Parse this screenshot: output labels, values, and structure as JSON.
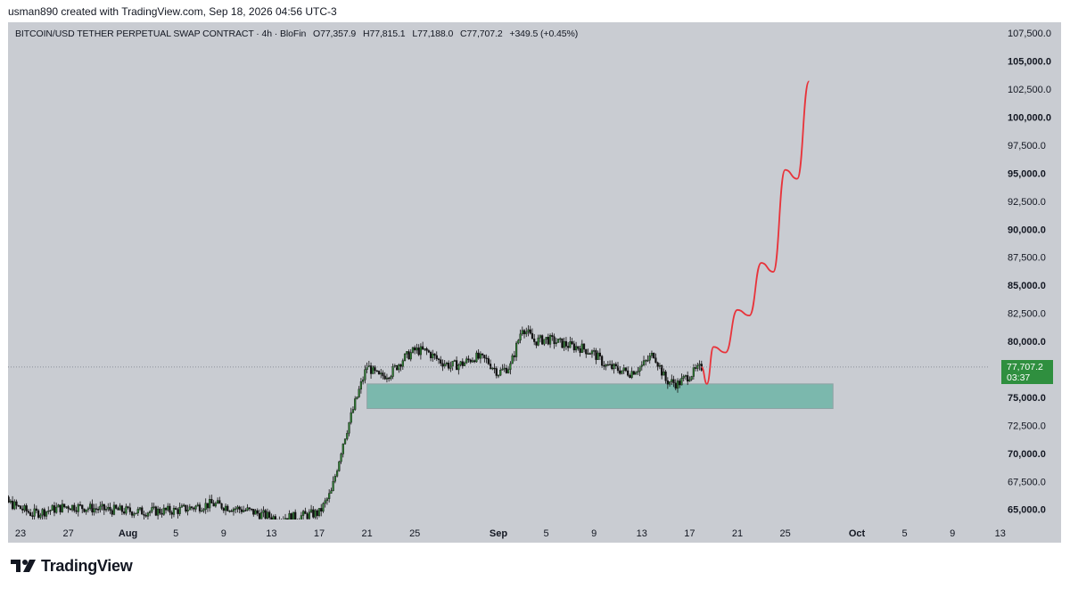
{
  "header": {
    "credit": "usman890 created with TradingView.com, Sep 18, 2026 04:56 UTC-3"
  },
  "symbol": {
    "name": "BITCOIN/USD TETHER PERPETUAL SWAP CONTRACT · 4h · BloFin",
    "open": "O77,357.9",
    "high": "H77,815.1",
    "low": "L77,188.0",
    "close": "C77,707.2",
    "change": "+349.5 (+0.45%)"
  },
  "price_tag": {
    "price": "77,707.2",
    "countdown": "03:37"
  },
  "footer": {
    "brand": "TradingView"
  },
  "colors": {
    "background": "#c9ccd2",
    "zone": "#7bb8ad",
    "projection": "#e8333a",
    "last_price": "#2f8f3f",
    "candle_up": "#2e7d32",
    "candle_down": "#111111"
  },
  "chart_data": {
    "type": "candlestick",
    "timeframe": "4h",
    "y_ticks": [
      "107,500.0",
      "105,000.0",
      "102,500.0",
      "100,000.0",
      "97,500.0",
      "95,000.0",
      "92,500.0",
      "90,000.0",
      "87,500.0",
      "85,000.0",
      "82,500.0",
      "80,000.0",
      "75,000.0",
      "72,500.0",
      "70,000.0",
      "67,500.0",
      "65,000.0"
    ],
    "x_ticks": [
      "23",
      "27",
      "Aug",
      "5",
      "9",
      "13",
      "17",
      "21",
      "25",
      "Sep",
      "5",
      "9",
      "13",
      "17",
      "21",
      "25",
      "Oct",
      "5",
      "9",
      "13"
    ],
    "last_price": 77707.2,
    "price_path": [
      [
        "Jul 20",
        66500
      ],
      [
        "Jul 22",
        65600
      ],
      [
        "Jul 24",
        64600
      ],
      [
        "Jul 27",
        65300
      ],
      [
        "Jul 30",
        65000
      ],
      [
        "Aug 2",
        64800
      ],
      [
        "Aug 5",
        64900
      ],
      [
        "Aug 8",
        65500
      ],
      [
        "Aug 11",
        64900
      ],
      [
        "Aug 13",
        64300
      ],
      [
        "Aug 15",
        64300
      ],
      [
        "Aug 17",
        64700
      ],
      [
        "Aug 18",
        66500
      ],
      [
        "Aug 19",
        71000
      ],
      [
        "Aug 20",
        74500
      ],
      [
        "Aug 21",
        77800
      ],
      [
        "Aug 22",
        76800
      ],
      [
        "Aug 23",
        77200
      ],
      [
        "Aug 24",
        78400
      ],
      [
        "Aug 25",
        79200
      ],
      [
        "Aug 26",
        79100
      ],
      [
        "Aug 27",
        78300
      ],
      [
        "Aug 28",
        77800
      ],
      [
        "Aug 29",
        78000
      ],
      [
        "Aug 30",
        78600
      ],
      [
        "Aug 31",
        78300
      ],
      [
        "Sep 1",
        77200
      ],
      [
        "Sep 2",
        77800
      ],
      [
        "Sep 3",
        81300
      ],
      [
        "Sep 4",
        80000
      ],
      [
        "Sep 5",
        80200
      ],
      [
        "Sep 6",
        79900
      ],
      [
        "Sep 7",
        79600
      ],
      [
        "Sep 8",
        79400
      ],
      [
        "Sep 9",
        78900
      ],
      [
        "Sep 10",
        77800
      ],
      [
        "Sep 11",
        77500
      ],
      [
        "Sep 12",
        77200
      ],
      [
        "Sep 13",
        77800
      ],
      [
        "Sep 14",
        78900
      ],
      [
        "Sep 15",
        76500
      ],
      [
        "Sep 16",
        76200
      ],
      [
        "Sep 17",
        77000
      ],
      [
        "Sep 18",
        77700
      ]
    ],
    "annotations": [
      {
        "type": "rectangle",
        "name": "support zone",
        "x_range": [
          "Aug 21",
          "Sep 29"
        ],
        "y_range": [
          74000,
          76200
        ]
      },
      {
        "type": "projection",
        "name": "forecast path",
        "points": [
          [
            "Sep 18",
            77700
          ],
          [
            "Sep 18",
            76200
          ],
          [
            "Sep 19",
            79500
          ],
          [
            "Sep 20",
            79000
          ],
          [
            "Sep 21",
            82800
          ],
          [
            "Sep 22",
            82300
          ],
          [
            "Sep 23",
            87000
          ],
          [
            "Sep 24",
            86200
          ],
          [
            "Sep 25",
            95300
          ],
          [
            "Sep 26",
            94500
          ],
          [
            "Sep 27",
            103200
          ]
        ]
      }
    ]
  }
}
